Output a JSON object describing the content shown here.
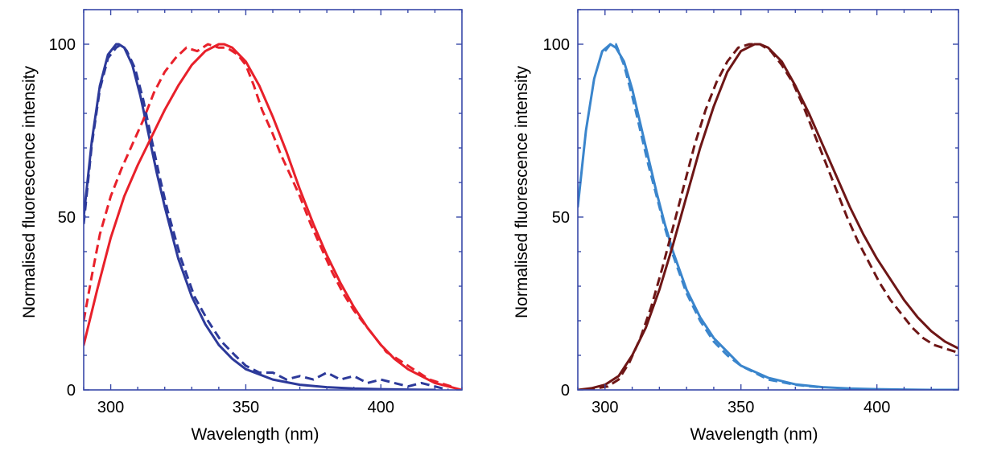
{
  "chart_data": [
    {
      "type": "line",
      "xlabel": "Wavelength (nm)",
      "ylabel": "Normalised fluorescence intensity",
      "xlim": [
        290,
        430
      ],
      "ylim": [
        0,
        110
      ],
      "xticks": [
        300,
        350,
        400
      ],
      "yticks": [
        0,
        50,
        100
      ],
      "grid": false,
      "legend": "none",
      "axis_color": "#3949a8",
      "series": [
        {
          "color": "#2d3a9a",
          "style": "solid",
          "x": [
            290,
            293,
            296,
            299,
            302,
            303,
            305,
            308,
            311,
            314,
            317,
            320,
            325,
            330,
            335,
            340,
            345,
            350,
            360,
            370,
            380,
            390,
            400,
            410,
            420
          ],
          "y": [
            50,
            72,
            88,
            97,
            100,
            100,
            99,
            94,
            85,
            74,
            63,
            53,
            38,
            27,
            19,
            13,
            9,
            6,
            3,
            1.5,
            0.8,
            0.4,
            0.2,
            0.1,
            0
          ]
        },
        {
          "color": "#2d3a9a",
          "style": "dashed",
          "x": [
            290,
            293,
            296,
            299,
            302,
            304,
            306,
            309,
            312,
            315,
            318,
            321,
            326,
            331,
            336,
            341,
            346,
            350,
            355,
            360,
            365,
            370,
            375,
            380,
            385,
            390,
            395,
            400,
            405,
            410,
            415,
            420,
            425
          ],
          "y": [
            48,
            71,
            87,
            96,
            99,
            100,
            98,
            93,
            84,
            73,
            62,
            52,
            38,
            27,
            20,
            14,
            10,
            7,
            5,
            5,
            3,
            4,
            3,
            5,
            3,
            4,
            2,
            3,
            2,
            1,
            2,
            1,
            0
          ]
        },
        {
          "color": "#e8202a",
          "style": "solid",
          "x": [
            290,
            295,
            300,
            305,
            310,
            315,
            320,
            325,
            330,
            335,
            340,
            342,
            345,
            350,
            355,
            360,
            365,
            370,
            375,
            380,
            385,
            390,
            395,
            400,
            405,
            410,
            415,
            420,
            425,
            430
          ],
          "y": [
            13,
            29,
            44,
            56,
            65,
            73,
            81,
            88,
            94,
            98,
            100,
            100,
            99,
            95,
            88,
            79,
            69,
            58,
            48,
            39,
            31,
            24,
            18,
            13,
            9,
            6,
            4,
            2,
            1,
            0
          ]
        },
        {
          "color": "#e8202a",
          "style": "dashed",
          "x": [
            290,
            293,
            296,
            300,
            304,
            308,
            312,
            316,
            320,
            324,
            328,
            332,
            336,
            340,
            343,
            347,
            350,
            353,
            356,
            360,
            363,
            366,
            370,
            374,
            378,
            382,
            386,
            390,
            394,
            398,
            402,
            406,
            410,
            414,
            418,
            422,
            426
          ],
          "y": [
            20,
            33,
            45,
            56,
            64,
            71,
            78,
            86,
            92,
            96,
            99,
            98,
            100,
            99,
            99,
            97,
            94,
            88,
            81,
            74,
            68,
            63,
            56,
            48,
            41,
            34,
            28,
            23,
            19,
            15,
            11,
            9,
            7,
            5,
            3,
            2,
            1
          ]
        }
      ]
    },
    {
      "type": "line",
      "xlabel": "Wavelength (nm)",
      "ylabel": "Normalised fluorescence intensity",
      "xlim": [
        290,
        430
      ],
      "ylim": [
        0,
        110
      ],
      "xticks": [
        300,
        350,
        400
      ],
      "yticks": [
        0,
        50,
        100
      ],
      "grid": false,
      "legend": "none",
      "axis_color": "#3949a8",
      "series": [
        {
          "color": "#3a85cc",
          "style": "solid",
          "x": [
            290,
            293,
            296,
            299,
            302,
            304,
            307,
            310,
            313,
            316,
            319,
            322,
            325,
            330,
            335,
            340,
            345,
            350,
            360,
            370,
            380,
            390,
            400,
            410,
            420,
            430
          ],
          "y": [
            53,
            75,
            90,
            98,
            100,
            99,
            95,
            87,
            77,
            67,
            57,
            48,
            40,
            29,
            21,
            15,
            11,
            7,
            3.5,
            1.6,
            0.8,
            0.4,
            0.2,
            0.1,
            0,
            0
          ]
        },
        {
          "color": "#3a85cc",
          "style": "dashed",
          "x": [
            300,
            302,
            304,
            307,
            310,
            313,
            316,
            319,
            322,
            325,
            330,
            335,
            340,
            345,
            350,
            360,
            370,
            380
          ],
          "y": [
            98,
            100,
            100,
            94,
            85,
            75,
            65,
            56,
            47,
            39,
            28,
            20,
            14,
            10,
            7,
            3,
            1.5,
            0.7
          ]
        },
        {
          "color": "#6e1616",
          "style": "solid",
          "x": [
            290,
            295,
            300,
            305,
            310,
            315,
            320,
            325,
            330,
            335,
            340,
            345,
            350,
            355,
            357,
            360,
            365,
            370,
            375,
            380,
            385,
            390,
            395,
            400,
            405,
            410,
            415,
            420,
            425,
            430
          ],
          "y": [
            0,
            0.5,
            1.5,
            4,
            10,
            18,
            29,
            42,
            56,
            70,
            82,
            92,
            98,
            100,
            100,
            99,
            95,
            88,
            80,
            71,
            62,
            53,
            45,
            38,
            32,
            26,
            21,
            17,
            14,
            12
          ]
        },
        {
          "color": "#6e1616",
          "style": "dashed",
          "x": [
            293,
            297,
            301,
            305,
            309,
            313,
            317,
            321,
            325,
            329,
            333,
            337,
            341,
            345,
            349,
            353,
            357,
            361,
            365,
            369,
            373,
            377,
            381,
            385,
            389,
            393,
            397,
            401,
            405,
            409,
            413,
            417,
            421,
            425,
            429
          ],
          "y": [
            0,
            0.5,
            1,
            3,
            8,
            15,
            24,
            35,
            47,
            59,
            71,
            81,
            89,
            95,
            99,
            100,
            100,
            98,
            94,
            89,
            82,
            74,
            66,
            58,
            50,
            43,
            37,
            31,
            26,
            22,
            18,
            15,
            13,
            12,
            11
          ]
        }
      ]
    }
  ]
}
